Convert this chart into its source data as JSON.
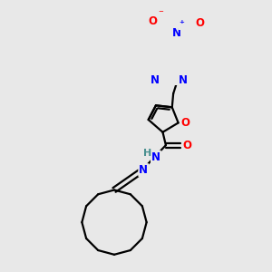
{
  "background_color": "#e8e8e8",
  "atom_colors": {
    "C": "#000000",
    "N": "#0000ff",
    "O": "#ff0000",
    "H": "#4a9090"
  },
  "bond_color": "#000000",
  "bond_width": 1.6,
  "figsize": [
    3.0,
    3.0
  ],
  "dpi": 100
}
